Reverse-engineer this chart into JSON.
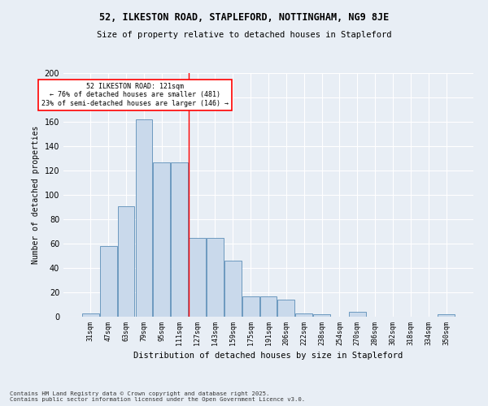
{
  "title_line1": "52, ILKESTON ROAD, STAPLEFORD, NOTTINGHAM, NG9 8JE",
  "title_line2": "Size of property relative to detached houses in Stapleford",
  "xlabel": "Distribution of detached houses by size in Stapleford",
  "ylabel": "Number of detached properties",
  "categories": [
    "31sqm",
    "47sqm",
    "63sqm",
    "79sqm",
    "95sqm",
    "111sqm",
    "127sqm",
    "143sqm",
    "159sqm",
    "175sqm",
    "191sqm",
    "206sqm",
    "222sqm",
    "238sqm",
    "254sqm",
    "270sqm",
    "286sqm",
    "302sqm",
    "318sqm",
    "334sqm",
    "350sqm"
  ],
  "values": [
    3,
    58,
    91,
    162,
    127,
    127,
    65,
    65,
    46,
    17,
    17,
    14,
    3,
    2,
    0,
    4,
    0,
    0,
    0,
    0,
    2
  ],
  "bar_color": "#c9d9eb",
  "bar_edge_color": "#5b8db8",
  "vline_x": 5.5,
  "vline_color": "red",
  "annotation_text": "52 ILKESTON ROAD: 121sqm\n← 76% of detached houses are smaller (481)\n23% of semi-detached houses are larger (146) →",
  "ylim": [
    0,
    200
  ],
  "yticks": [
    0,
    20,
    40,
    60,
    80,
    100,
    120,
    140,
    160,
    180,
    200
  ],
  "footer": "Contains HM Land Registry data © Crown copyright and database right 2025.\nContains public sector information licensed under the Open Government Licence v3.0.",
  "bg_color": "#e8eef5"
}
